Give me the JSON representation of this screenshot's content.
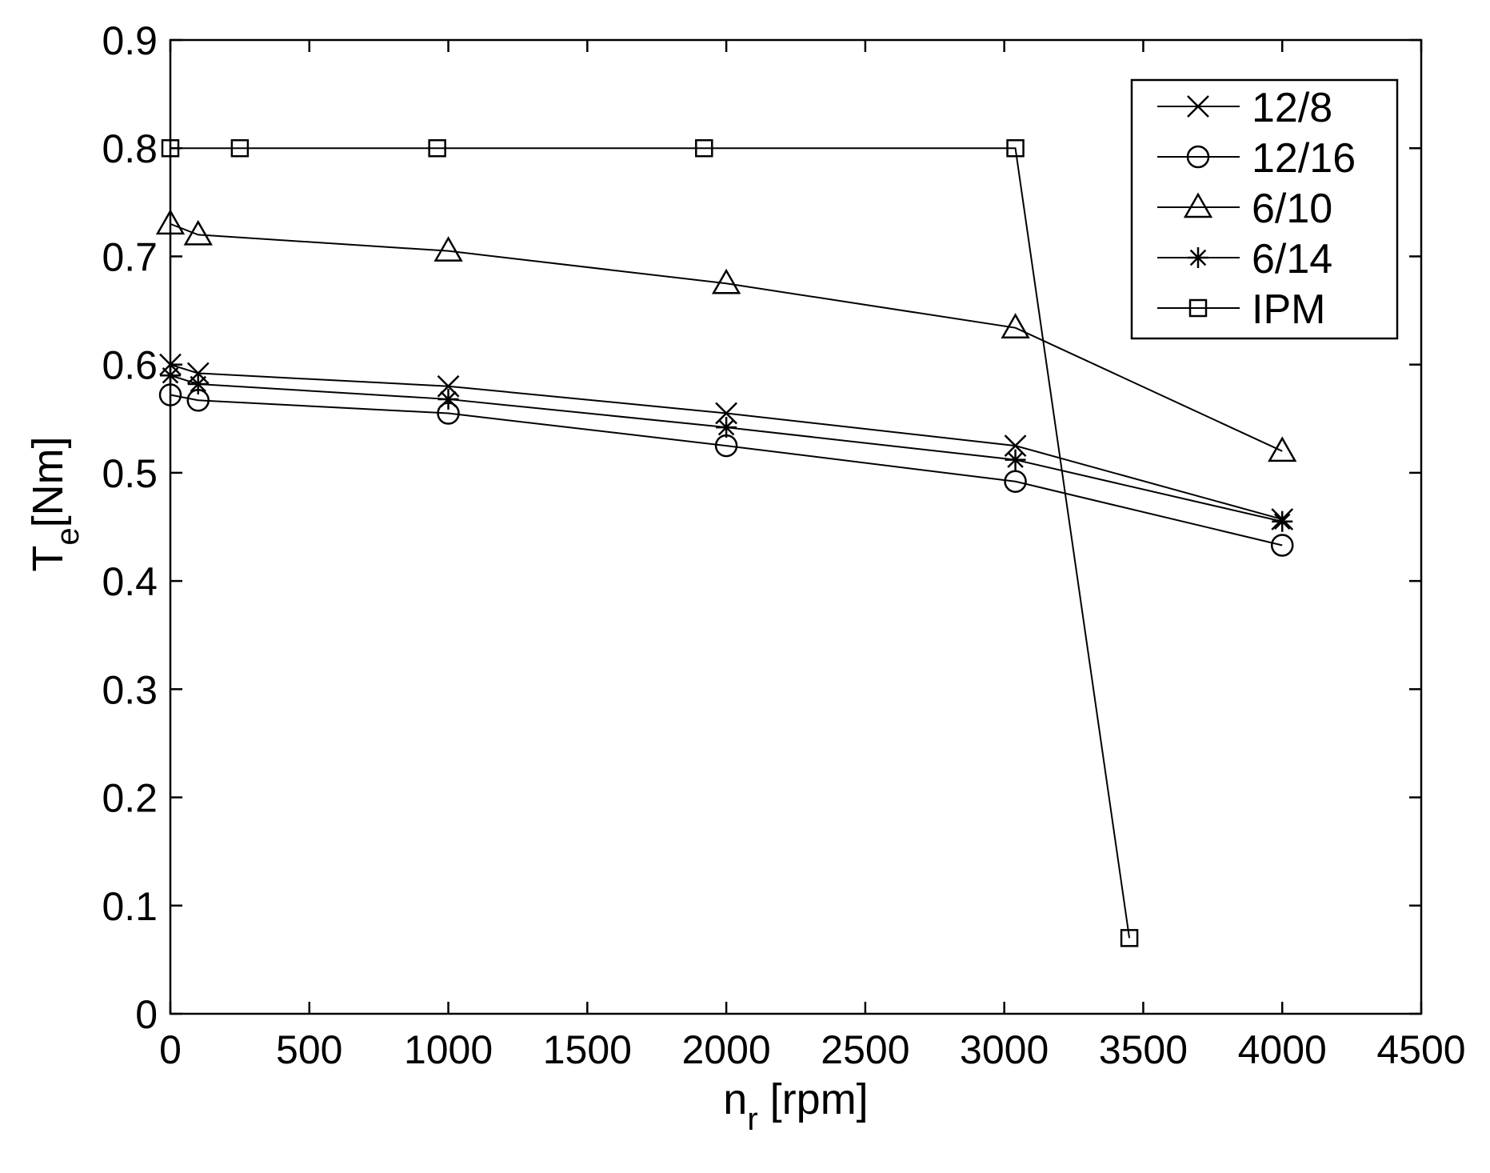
{
  "chart_data": {
    "type": "line",
    "xlabel": {
      "main": "n",
      "sub": "r",
      "rest": " [rpm]"
    },
    "ylabel": {
      "main": "T",
      "sub": "e",
      "rest": "[Nm]"
    },
    "xlim": [
      0,
      4500
    ],
    "ylim": [
      0,
      0.9
    ],
    "xticks": [
      0,
      500,
      1000,
      1500,
      2000,
      2500,
      3000,
      3500,
      4000,
      4500
    ],
    "xtick_labels": [
      "0",
      "500",
      "1000",
      "1500",
      "2000",
      "2500",
      "3000",
      "3500",
      "4000",
      "4500"
    ],
    "yticks": [
      0,
      0.1,
      0.2,
      0.3,
      0.4,
      0.5,
      0.6,
      0.7,
      0.8,
      0.9
    ],
    "ytick_labels": [
      "0",
      "0.1",
      "0.2",
      "0.3",
      "0.4",
      "0.5",
      "0.6",
      "0.7",
      "0.8",
      "0.9"
    ],
    "grid": false,
    "legend": "top-right",
    "series": [
      {
        "name": "12/8",
        "marker": "x",
        "x": [
          0,
          100,
          1000,
          2000,
          3040,
          4000
        ],
        "y": [
          0.6,
          0.592,
          0.58,
          0.555,
          0.525,
          0.457
        ]
      },
      {
        "name": "12/16",
        "marker": "circle",
        "x": [
          0,
          100,
          1000,
          2000,
          3040,
          4000
        ],
        "y": [
          0.572,
          0.567,
          0.555,
          0.525,
          0.492,
          0.433
        ]
      },
      {
        "name": "6/10",
        "marker": "triangle",
        "x": [
          0,
          100,
          1000,
          2000,
          3040,
          4000
        ],
        "y": [
          0.73,
          0.72,
          0.705,
          0.675,
          0.634,
          0.52
        ]
      },
      {
        "name": "6/14",
        "marker": "asterisk",
        "x": [
          0,
          100,
          1000,
          2000,
          3040,
          4000
        ],
        "y": [
          0.59,
          0.582,
          0.568,
          0.542,
          0.512,
          0.455
        ]
      },
      {
        "name": "IPM",
        "marker": "square",
        "x": [
          0,
          250,
          960,
          1920,
          3040,
          3450
        ],
        "y": [
          0.8,
          0.8,
          0.8,
          0.8,
          0.8,
          0.07
        ]
      }
    ]
  }
}
